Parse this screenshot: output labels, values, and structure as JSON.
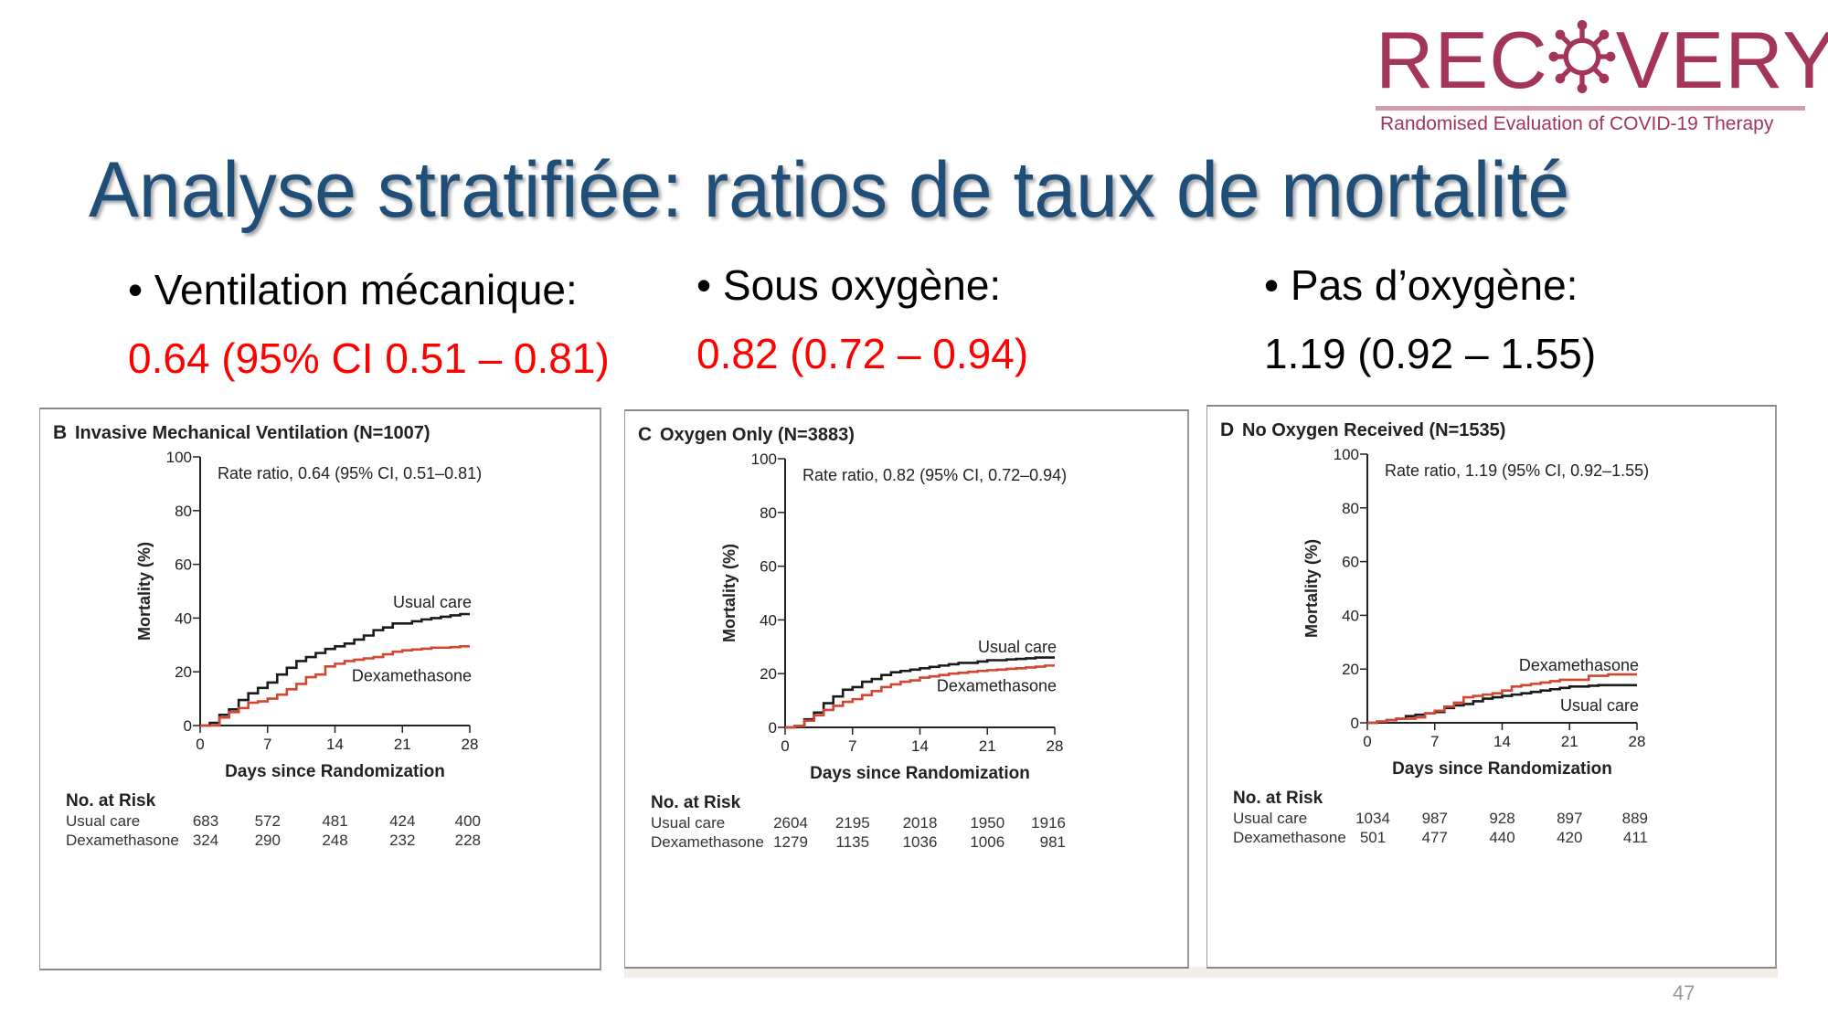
{
  "slide": {
    "title": "Analyse stratifiée: ratios de taux de mortalité",
    "page_number": "47"
  },
  "logo": {
    "word": "RECOVERY",
    "subtitle": "Randomised Evaluation of COVID-19 Therapy",
    "color": "#a3355a"
  },
  "bullets": [
    {
      "label": "Ventilation mécanique:",
      "result": "0.64 (95% CI 0.51 – 0.81)",
      "color": "#ff0000"
    },
    {
      "label": "Sous oxygène:",
      "result": "0.82 (0.72 – 0.94)",
      "color": "#ff0000"
    },
    {
      "label": "Pas d’oxygène:",
      "result": "1.19 (0.92 – 1.55)",
      "color": "#000000"
    }
  ],
  "chart_data": [
    {
      "type": "line",
      "panel": "B",
      "title": "Invasive Mechanical Ventilation (N=1007)",
      "annotation": "Rate ratio, 0.64 (95% CI, 0.51–0.81)",
      "xlabel": "Days since Randomization",
      "ylabel": "Mortality (%)",
      "xlim": [
        0,
        28
      ],
      "ylim": [
        0,
        100
      ],
      "xticks": [
        0,
        7,
        14,
        21,
        28
      ],
      "yticks": [
        0,
        20,
        40,
        60,
        80,
        100
      ],
      "grid": false,
      "step": true,
      "series": [
        {
          "name": "Usual care",
          "color": "#1a1a1a",
          "x": [
            0,
            1,
            2,
            3,
            4,
            5,
            6,
            7,
            8,
            9,
            10,
            11,
            12,
            13,
            14,
            15,
            16,
            17,
            18,
            19,
            20,
            21,
            22,
            23,
            24,
            25,
            26,
            27,
            28
          ],
          "y": [
            0,
            1,
            4,
            6,
            9.5,
            12,
            14,
            16,
            19,
            21.5,
            24,
            25.5,
            27,
            28.5,
            29.5,
            30.5,
            32,
            33.5,
            35.5,
            36.5,
            38,
            38,
            38.8,
            39.5,
            40,
            40.5,
            41,
            41.5,
            41.5
          ]
        },
        {
          "name": "Dexamethasone",
          "color": "#d2472f",
          "x": [
            0,
            1,
            2,
            3,
            4,
            5,
            6,
            7,
            8,
            9,
            10,
            11,
            12,
            13,
            14,
            15,
            16,
            17,
            18,
            19,
            20,
            21,
            22,
            23,
            24,
            25,
            26,
            27,
            28
          ],
          "y": [
            0,
            0,
            3,
            5,
            6.5,
            8.5,
            9,
            10,
            11.5,
            13.5,
            15.5,
            18,
            19,
            22,
            23,
            24,
            24.5,
            25,
            25.5,
            26.5,
            27.5,
            28,
            28.3,
            28.6,
            29,
            29,
            29.2,
            29.5,
            29.5
          ]
        }
      ],
      "risk_table": {
        "header": "No. at Risk",
        "rows": [
          {
            "label": "Usual care",
            "values": [
              "683",
              "572",
              "481",
              "424",
              "400"
            ]
          },
          {
            "label": "Dexamethasone",
            "values": [
              "324",
              "290",
              "248",
              "232",
              "228"
            ]
          }
        ]
      }
    },
    {
      "type": "line",
      "panel": "C",
      "title": "Oxygen Only (N=3883)",
      "annotation": "Rate ratio, 0.82 (95% CI, 0.72–0.94)",
      "xlabel": "Days since Randomization",
      "ylabel": "Mortality (%)",
      "xlim": [
        0,
        28
      ],
      "ylim": [
        0,
        100
      ],
      "xticks": [
        0,
        7,
        14,
        21,
        28
      ],
      "yticks": [
        0,
        20,
        40,
        60,
        80,
        100
      ],
      "grid": false,
      "step": true,
      "series": [
        {
          "name": "Usual care",
          "color": "#1a1a1a",
          "x": [
            0,
            1,
            2,
            3,
            4,
            5,
            6,
            7,
            8,
            9,
            10,
            11,
            12,
            13,
            14,
            15,
            16,
            17,
            18,
            19,
            20,
            21,
            22,
            23,
            24,
            25,
            26,
            27,
            28
          ],
          "y": [
            0,
            0.5,
            3,
            5.5,
            9,
            11.5,
            14,
            15,
            17,
            18,
            19.5,
            20.5,
            21,
            21.5,
            22,
            22.5,
            23,
            23.5,
            24,
            24,
            24.5,
            25,
            25,
            25.3,
            25.5,
            25.7,
            26,
            26,
            26
          ]
        },
        {
          "name": "Dexamethasone",
          "color": "#d2472f",
          "x": [
            0,
            1,
            2,
            3,
            4,
            5,
            6,
            7,
            8,
            9,
            10,
            11,
            12,
            13,
            14,
            15,
            16,
            17,
            18,
            19,
            20,
            21,
            22,
            23,
            24,
            25,
            26,
            27,
            28
          ],
          "y": [
            0,
            0.5,
            2.5,
            4.5,
            6.5,
            8,
            9.5,
            10.5,
            12,
            13.5,
            15,
            16,
            17,
            17.5,
            18.5,
            19,
            19.5,
            20,
            20.3,
            20.7,
            21,
            21.3,
            21.5,
            21.8,
            22,
            22.3,
            22.6,
            23,
            23
          ]
        }
      ],
      "risk_table": {
        "header": "No. at Risk",
        "rows": [
          {
            "label": "Usual care",
            "values": [
              "2604",
              "2195",
              "2018",
              "1950",
              "1916"
            ]
          },
          {
            "label": "Dexamethasone",
            "values": [
              "1279",
              "1135",
              "1036",
              "1006",
              "981"
            ]
          }
        ]
      }
    },
    {
      "type": "line",
      "panel": "D",
      "title": "No Oxygen Received (N=1535)",
      "annotation": "Rate ratio, 1.19 (95% CI, 0.92–1.55)",
      "xlabel": "Days since Randomization",
      "ylabel": "Mortality (%)",
      "xlim": [
        0,
        28
      ],
      "ylim": [
        0,
        100
      ],
      "xticks": [
        0,
        7,
        14,
        21,
        28
      ],
      "yticks": [
        0,
        20,
        40,
        60,
        80,
        100
      ],
      "grid": false,
      "step": true,
      "series": [
        {
          "name": "Usual care",
          "color": "#1a1a1a",
          "x": [
            0,
            1,
            2,
            3,
            4,
            5,
            6,
            7,
            8,
            9,
            10,
            11,
            12,
            13,
            14,
            15,
            16,
            17,
            18,
            19,
            20,
            21,
            22,
            23,
            24,
            25,
            26,
            27,
            28
          ],
          "y": [
            0,
            0.3,
            1,
            1.5,
            2.5,
            3,
            3.5,
            4,
            5.5,
            6.5,
            7,
            8,
            9,
            9.5,
            10,
            10.5,
            11,
            11.5,
            12,
            12.5,
            13,
            13.5,
            13.5,
            13.8,
            14,
            14,
            14,
            14,
            14
          ]
        },
        {
          "name": "Dexamethasone",
          "color": "#d2472f",
          "x": [
            0,
            1,
            2,
            3,
            4,
            5,
            6,
            7,
            8,
            9,
            10,
            11,
            12,
            13,
            14,
            15,
            16,
            17,
            18,
            19,
            20,
            21,
            22,
            23,
            24,
            25,
            26,
            27,
            28
          ],
          "y": [
            0,
            0.5,
            1,
            1.5,
            1.5,
            2,
            3.5,
            4.5,
            6,
            7.5,
            9.5,
            10,
            10.5,
            11,
            12,
            13.5,
            14,
            14.5,
            15,
            15.5,
            16,
            16,
            16,
            17.5,
            17.5,
            18,
            18,
            18,
            18
          ]
        }
      ],
      "risk_table": {
        "header": "No. at Risk",
        "rows": [
          {
            "label": "Usual care",
            "values": [
              "1034",
              "987",
              "928",
              "897",
              "889"
            ]
          },
          {
            "label": "Dexamethasone",
            "values": [
              "501",
              "477",
              "440",
              "420",
              "411"
            ]
          }
        ]
      }
    }
  ]
}
